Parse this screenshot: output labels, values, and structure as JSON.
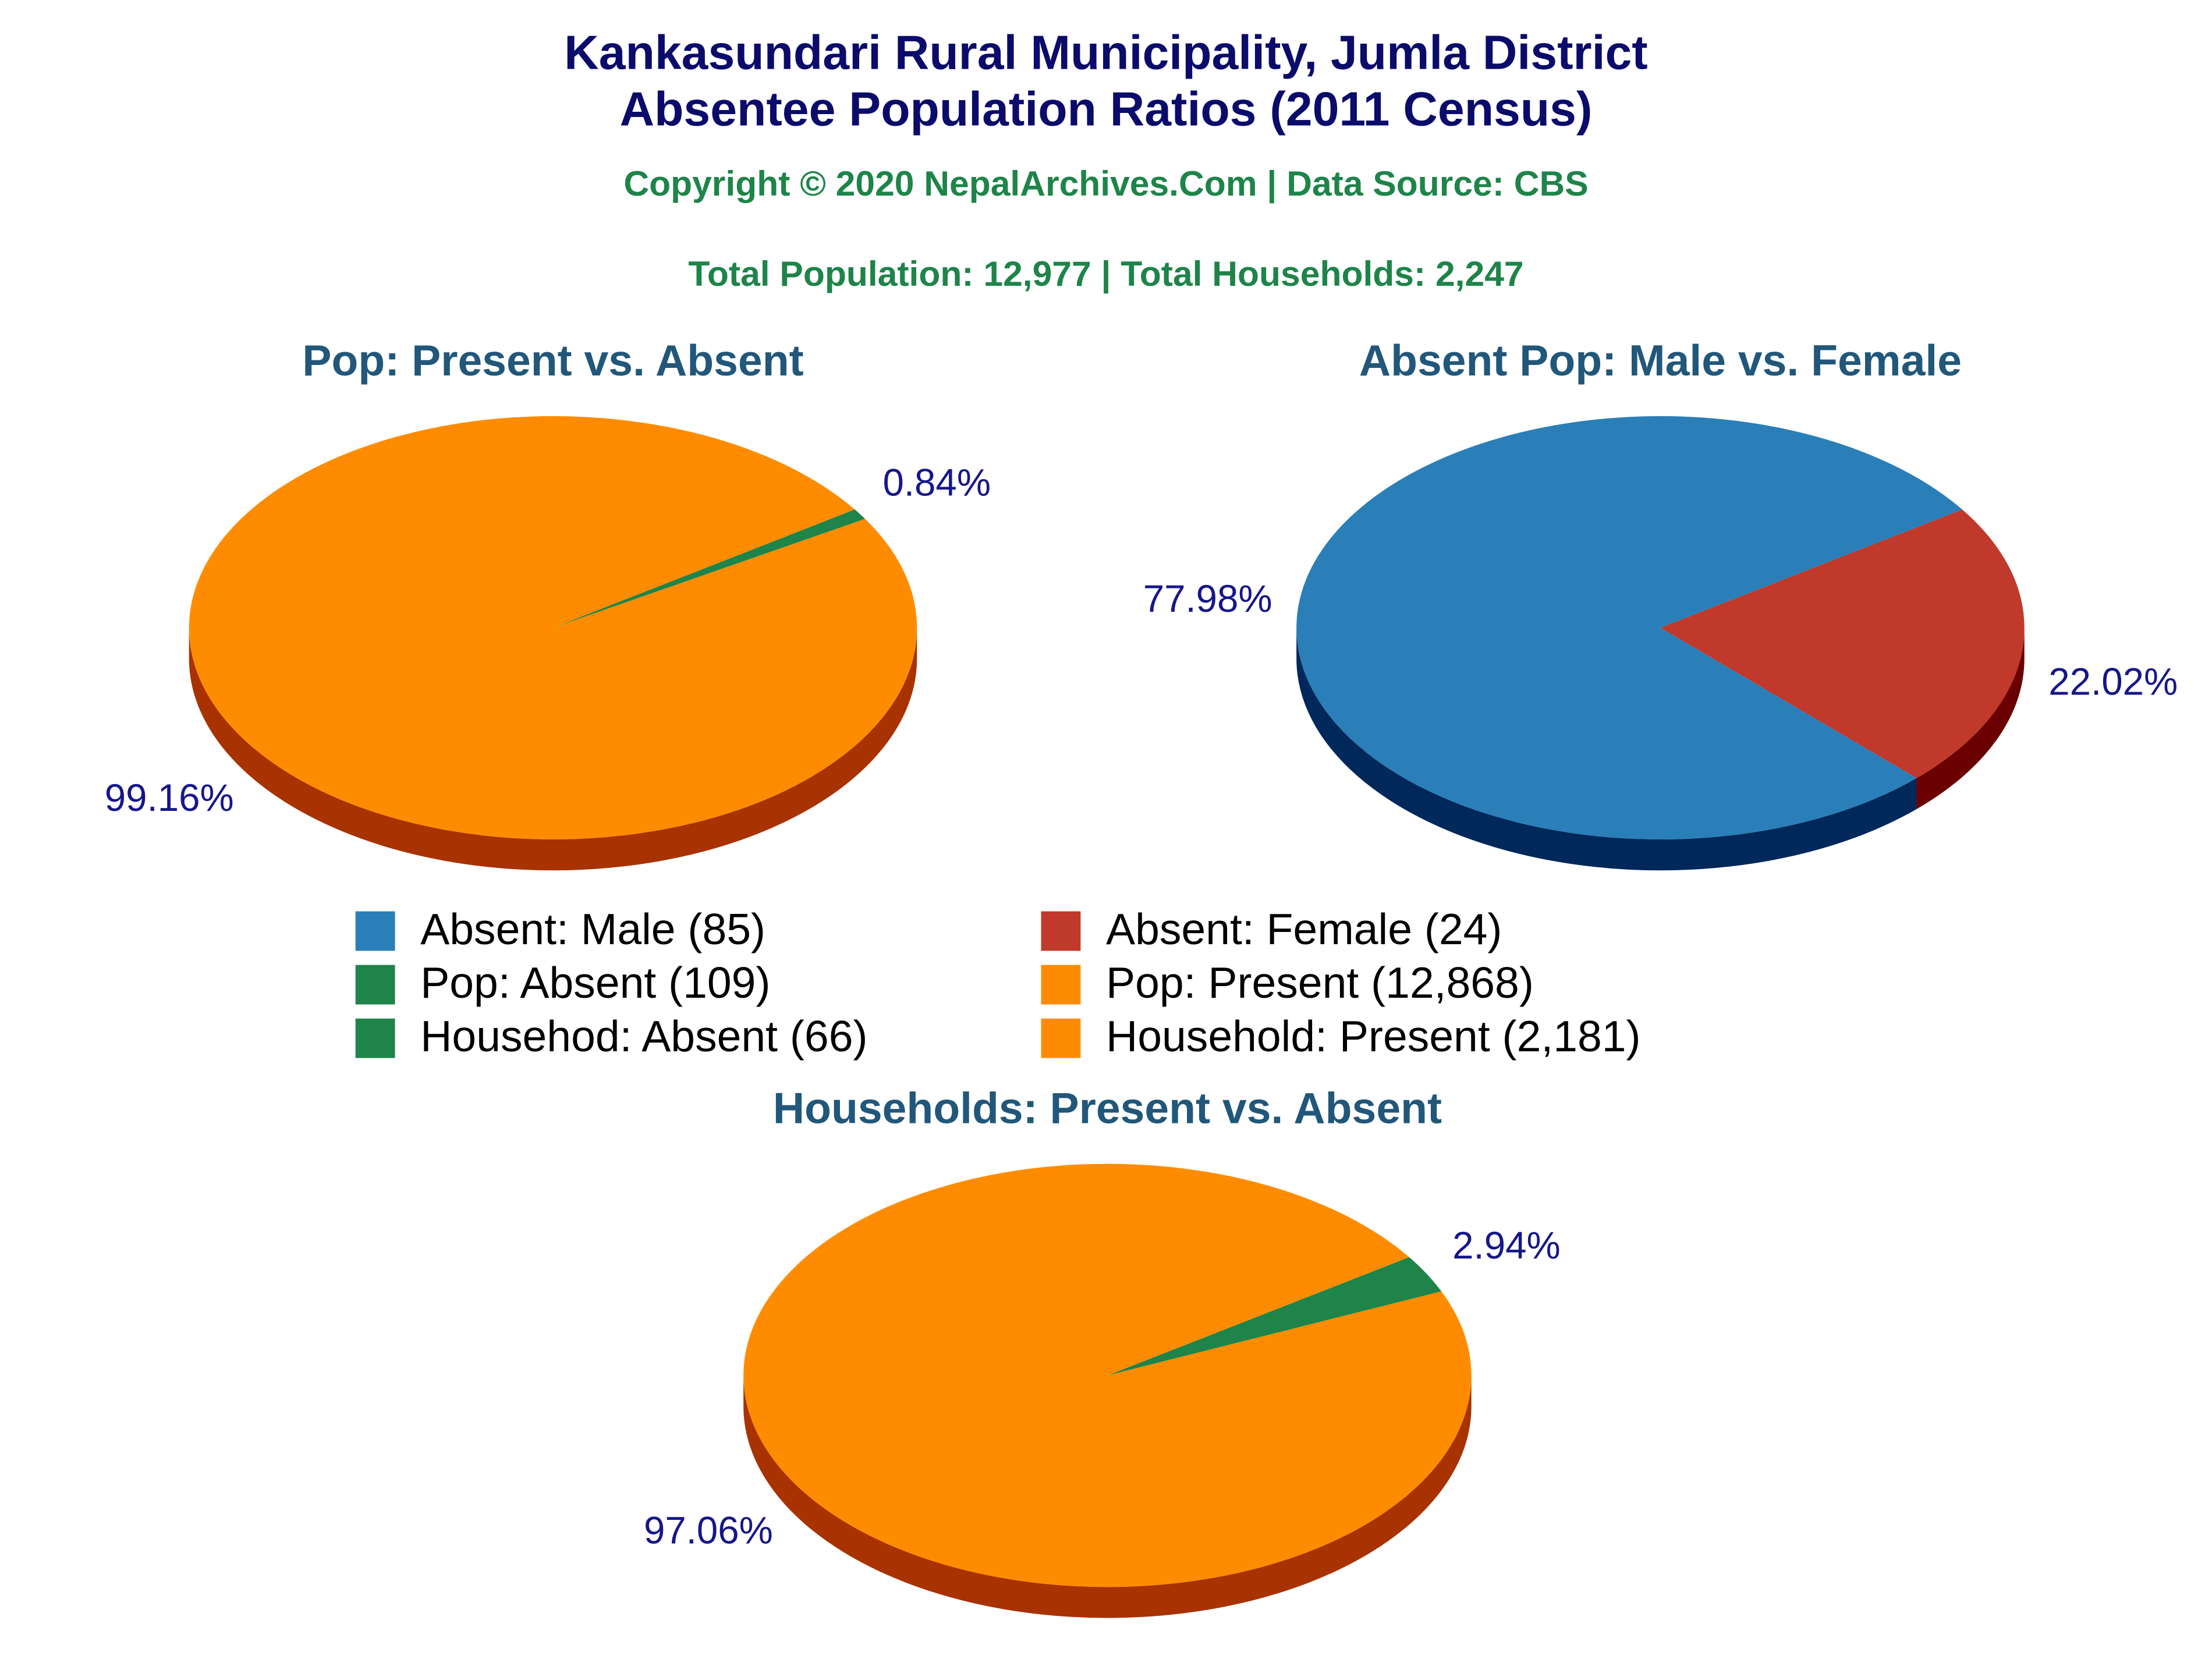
{
  "header": {
    "title": [
      "Kankasundari Rural Municipality, Jumla District",
      "Absentee Population Ratios (2011 Census)"
    ],
    "copyright": "Copyright © 2020 NepalArchives.Com | Data Source: CBS",
    "totals": "Total Population: 12,977 | Total Households: 2,247"
  },
  "chart_data": [
    {
      "type": "pie",
      "title": "Pop: Present vs. Absent",
      "values": [
        0.84,
        99.16
      ],
      "value_labels": [
        "0.84%",
        "99.16%"
      ],
      "colors": [
        "#1e8449",
        "#ff8c00"
      ],
      "side_colors": [
        "#0e4a27",
        "#a83200"
      ]
    },
    {
      "type": "pie",
      "title": "Absent Pop: Male vs. Female",
      "values": [
        22.02,
        77.98
      ],
      "value_labels": [
        "22.02%",
        "77.98%"
      ],
      "colors": [
        "#c0392b",
        "#2a7fb8"
      ],
      "side_colors": [
        "#6b0000",
        "#00285a"
      ]
    },
    {
      "type": "pie",
      "title": "Households: Present vs. Absent",
      "values": [
        2.94,
        97.06
      ],
      "value_labels": [
        "2.94%",
        "97.06%"
      ],
      "colors": [
        "#1e8449",
        "#ff8c00"
      ],
      "side_colors": [
        "#0e4a27",
        "#a83200"
      ]
    }
  ],
  "legend": [
    {
      "label": "Absent: Male (85)",
      "color": "#2a7fb8"
    },
    {
      "label": "Absent: Female (24)",
      "color": "#c0392b"
    },
    {
      "label": "Pop: Absent (109)",
      "color": "#1e8449"
    },
    {
      "label": "Pop: Present (12,868)",
      "color": "#ff8c00"
    },
    {
      "label": "Househod: Absent (66)",
      "color": "#1e8449"
    },
    {
      "label": "Household: Present (2,181)",
      "color": "#ff8c00"
    }
  ]
}
